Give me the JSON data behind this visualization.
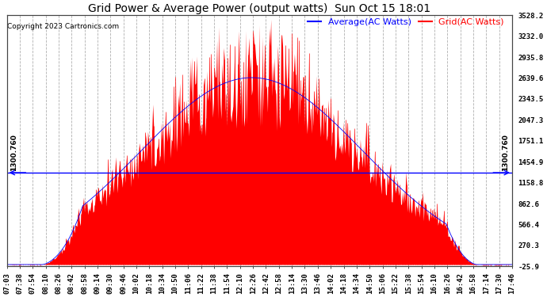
{
  "title": "Grid Power & Average Power (output watts)  Sun Oct 15 18:01",
  "copyright": "Copyright 2023 Cartronics.com",
  "legend_average": "Average(AC Watts)",
  "legend_grid": "Grid(AC Watts)",
  "ylabel_right_ticks": [
    3528.2,
    3232.0,
    2935.8,
    2639.6,
    2343.5,
    2047.3,
    1751.1,
    1454.9,
    1158.8,
    862.6,
    566.4,
    270.3,
    -25.9
  ],
  "hline_value": 1300.76,
  "hline_label": "1300.760",
  "ymin": -25.9,
  "ymax": 3528.2,
  "background_color": "#ffffff",
  "plot_bg_color": "#ffffff",
  "grid_color": "#b0b0b0",
  "fill_color": "#ff0000",
  "line_color": "#ff0000",
  "average_line_color": "#0000ff",
  "hline_color": "#0000ff",
  "title_color": "#000000",
  "copyright_color": "#000000",
  "legend_average_color": "#0000ff",
  "legend_grid_color": "#ff0000",
  "tick_label_fontsize": 6.5,
  "title_fontsize": 10,
  "copyright_fontsize": 6.5,
  "legend_fontsize": 8,
  "hline_fontsize": 6.5,
  "x_tick_labels": [
    "07:03",
    "07:38",
    "07:54",
    "08:10",
    "08:26",
    "08:42",
    "08:58",
    "09:14",
    "09:30",
    "09:46",
    "10:02",
    "10:18",
    "10:34",
    "10:50",
    "11:06",
    "11:22",
    "11:38",
    "11:54",
    "12:10",
    "12:26",
    "12:42",
    "12:58",
    "13:14",
    "13:30",
    "13:46",
    "14:02",
    "14:18",
    "14:34",
    "14:50",
    "15:06",
    "15:22",
    "15:38",
    "15:54",
    "16:10",
    "16:26",
    "16:42",
    "16:58",
    "17:14",
    "17:30",
    "17:46"
  ],
  "num_points": 600
}
